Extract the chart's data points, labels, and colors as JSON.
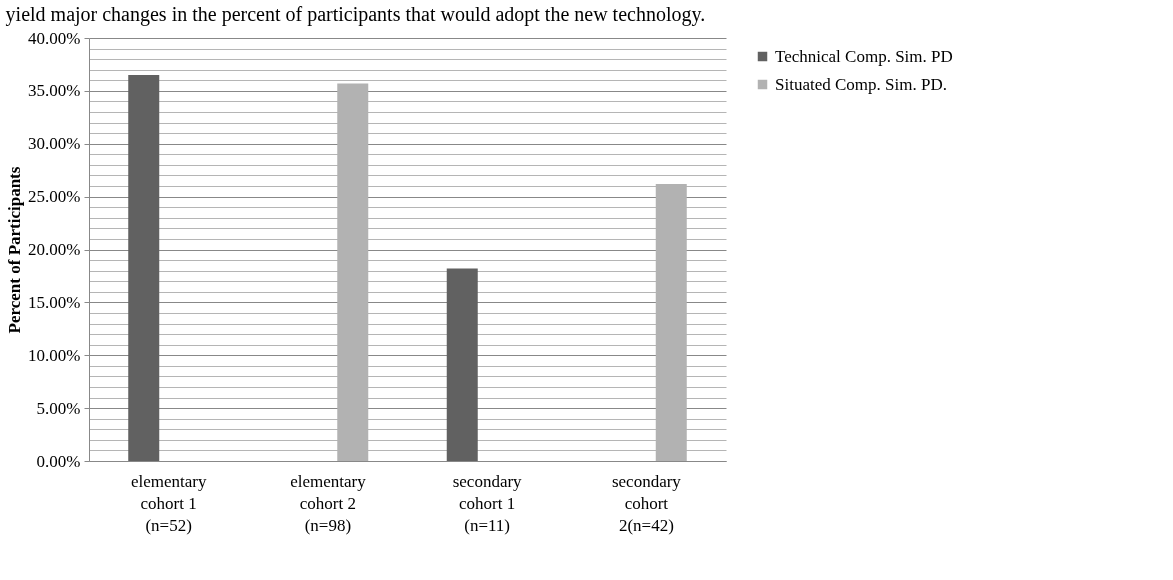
{
  "chart_data": {
    "type": "bar",
    "annotations": [
      "yield major changes in the percent of participants that would adopt the new technology."
    ],
    "ylabel": "Percent of Participants",
    "categories": [
      "elementary cohort 1 (n=52)",
      "elementary cohort 2 (n=98)",
      "secondary cohort 1 (n=11)",
      "secondary cohort 2(n=42)"
    ],
    "series": [
      {
        "name": "Technical Comp. Sim. PD",
        "color": "#616161",
        "values": [
          36.5,
          null,
          18.2,
          null
        ]
      },
      {
        "name": "Situated Comp. Sim. PD.",
        "color": "#b2b2b2",
        "values": [
          null,
          35.7,
          null,
          26.2
        ]
      }
    ],
    "ylim": [
      0,
      40
    ],
    "yticks": [
      {
        "value": 0,
        "label": "0.00%"
      },
      {
        "value": 1,
        "label": null
      },
      {
        "value": 2,
        "label": null
      },
      {
        "value": 3,
        "label": null
      },
      {
        "value": 4,
        "label": null
      },
      {
        "value": 5,
        "label": "5.00%"
      },
      {
        "value": 6,
        "label": null
      },
      {
        "value": 7,
        "label": null
      },
      {
        "value": 8,
        "label": null
      },
      {
        "value": 9,
        "label": null
      },
      {
        "value": 10,
        "label": "10.00%"
      },
      {
        "value": 11,
        "label": null
      },
      {
        "value": 12,
        "label": null
      },
      {
        "value": 13,
        "label": null
      },
      {
        "value": 14,
        "label": null
      },
      {
        "value": 15,
        "label": "15.00%"
      },
      {
        "value": 16,
        "label": null
      },
      {
        "value": 17,
        "label": null
      },
      {
        "value": 18,
        "label": null
      },
      {
        "value": 19,
        "label": null
      },
      {
        "value": 20,
        "label": "20.00%"
      },
      {
        "value": 21,
        "label": null
      },
      {
        "value": 22,
        "label": null
      },
      {
        "value": 23,
        "label": null
      },
      {
        "value": 24,
        "label": null
      },
      {
        "value": 25,
        "label": "25.00%"
      },
      {
        "value": 26,
        "label": null
      },
      {
        "value": 27,
        "label": null
      },
      {
        "value": 28,
        "label": null
      },
      {
        "value": 29,
        "label": null
      },
      {
        "value": 30,
        "label": "30.00%"
      },
      {
        "value": 31,
        "label": null
      },
      {
        "value": 32,
        "label": null
      },
      {
        "value": 33,
        "label": null
      },
      {
        "value": 34,
        "label": null
      },
      {
        "value": 35,
        "label": "35.00%"
      },
      {
        "value": 36,
        "label": null
      },
      {
        "value": 37,
        "label": null
      },
      {
        "value": 38,
        "label": null
      },
      {
        "value": 39,
        "label": null
      },
      {
        "value": 40,
        "label": "40.00%"
      }
    ],
    "grid": "y",
    "legend": "right"
  }
}
